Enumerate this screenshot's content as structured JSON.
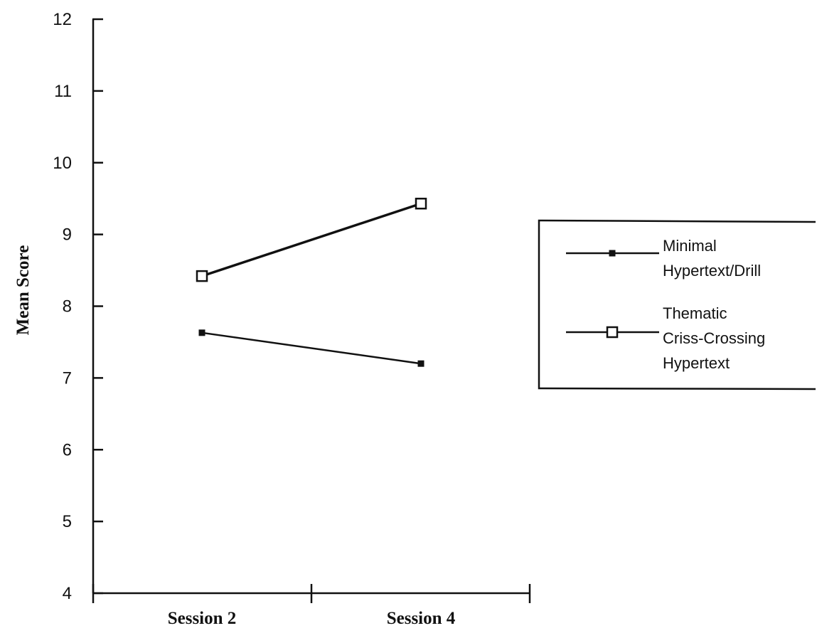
{
  "chart_data": {
    "type": "line",
    "categories": [
      "Session 2",
      "Session 4"
    ],
    "series": [
      {
        "name": "Minimal Hypertext/Drill",
        "name_lines": [
          "Minimal",
          "Hypertext/Drill"
        ],
        "marker": "filled-square",
        "values": [
          7.63,
          7.2
        ]
      },
      {
        "name": "Thematic Criss-Crossing Hypertext",
        "name_lines": [
          "Thematic",
          "Criss-Crossing",
          "Hypertext"
        ],
        "marker": "open-square",
        "values": [
          8.42,
          9.43
        ]
      }
    ],
    "ylabel": "Mean Score",
    "ylim": [
      4,
      12
    ],
    "yticks": [
      "4",
      "5",
      "6",
      "7",
      "8",
      "9",
      "10",
      "11",
      "12"
    ],
    "grid": false,
    "legend_position": "right",
    "colors": {
      "axis": "#111111",
      "line": "#111111",
      "background": "#ffffff"
    }
  }
}
